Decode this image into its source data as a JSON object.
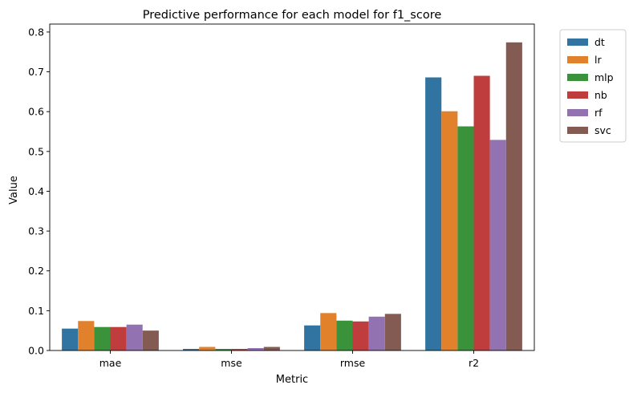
{
  "chart_data": {
    "type": "bar",
    "title": "Predictive performance for each model for f1_score",
    "xlabel": "Metric",
    "ylabel": "Value",
    "ylim": [
      0,
      0.82
    ],
    "yticks": [
      "0.0",
      "0.1",
      "0.2",
      "0.3",
      "0.4",
      "0.5",
      "0.6",
      "0.7",
      "0.8"
    ],
    "categories": [
      "mae",
      "mse",
      "rmse",
      "r2"
    ],
    "legend_position": "outside-top-right",
    "grid": false,
    "series": [
      {
        "name": "dt",
        "color": "#3274a1",
        "values": [
          0.055,
          0.004,
          0.063,
          0.686
        ]
      },
      {
        "name": "lr",
        "color": "#e1812c",
        "values": [
          0.074,
          0.009,
          0.094,
          0.601
        ]
      },
      {
        "name": "mlp",
        "color": "#3a923a",
        "values": [
          0.059,
          0.004,
          0.075,
          0.563
        ]
      },
      {
        "name": "nb",
        "color": "#c03d3e",
        "values": [
          0.059,
          0.004,
          0.073,
          0.69
        ]
      },
      {
        "name": "rf",
        "color": "#9372b2",
        "values": [
          0.065,
          0.006,
          0.085,
          0.529
        ]
      },
      {
        "name": "svc",
        "color": "#845b53",
        "values": [
          0.05,
          0.009,
          0.092,
          0.774
        ]
      }
    ]
  }
}
